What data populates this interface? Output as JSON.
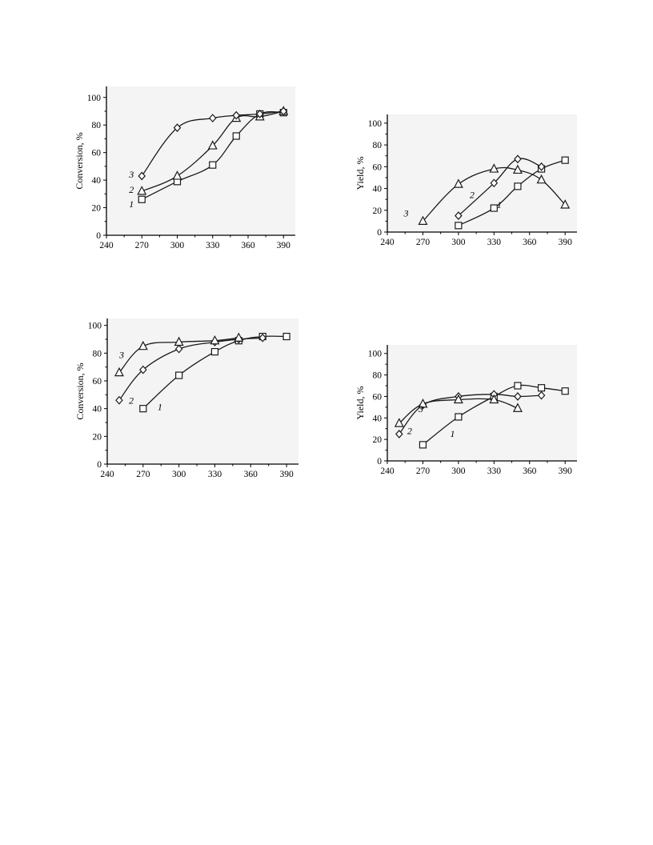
{
  "chart_data": [
    {
      "type": "line",
      "ylabel": "Conversion, %",
      "xlim": [
        240,
        400
      ],
      "ylim": [
        0,
        108
      ],
      "xticks": [
        240,
        270,
        300,
        330,
        360,
        390
      ],
      "yticks": [
        0,
        20,
        40,
        60,
        80,
        100
      ],
      "series": [
        {
          "name": "1",
          "marker": "square",
          "x": [
            270,
            300,
            330,
            350,
            370,
            390
          ],
          "y": [
            26,
            39,
            51,
            72,
            88,
            89
          ]
        },
        {
          "name": "2",
          "marker": "triangle",
          "x": [
            270,
            300,
            330,
            350,
            370,
            390
          ],
          "y": [
            32,
            43,
            65,
            85,
            86,
            90
          ]
        },
        {
          "name": "3",
          "marker": "diamond",
          "x": [
            270,
            300,
            330,
            350,
            370,
            390
          ],
          "y": [
            43,
            78,
            85,
            87,
            88,
            90
          ]
        }
      ]
    },
    {
      "type": "line",
      "ylabel": "Yield, %",
      "xlim": [
        240,
        400
      ],
      "ylim": [
        0,
        108
      ],
      "xticks": [
        240,
        270,
        300,
        330,
        360,
        390
      ],
      "yticks": [
        0,
        20,
        40,
        60,
        80,
        100
      ],
      "series": [
        {
          "name": "1",
          "marker": "square",
          "x": [
            300,
            330,
            350,
            370,
            390
          ],
          "y": [
            6,
            22,
            42,
            58,
            66
          ]
        },
        {
          "name": "2",
          "marker": "diamond",
          "x": [
            300,
            330,
            350,
            370
          ],
          "y": [
            15,
            45,
            67,
            60
          ]
        },
        {
          "name": "3",
          "marker": "triangle",
          "x": [
            270,
            300,
            330,
            350,
            370,
            390
          ],
          "y": [
            10,
            44,
            58,
            57,
            48,
            25
          ]
        }
      ]
    },
    {
      "type": "line",
      "ylabel": "Conversion, %",
      "xlim": [
        240,
        400
      ],
      "ylim": [
        0,
        105
      ],
      "xticks": [
        240,
        270,
        300,
        330,
        360,
        390
      ],
      "yticks": [
        0,
        20,
        40,
        60,
        80,
        100
      ],
      "series": [
        {
          "name": "1",
          "marker": "square",
          "x": [
            270,
            300,
            330,
            350,
            370,
            390
          ],
          "y": [
            40,
            64,
            81,
            89,
            92,
            92
          ]
        },
        {
          "name": "2",
          "marker": "diamond",
          "x": [
            250,
            270,
            300,
            330,
            350,
            370
          ],
          "y": [
            46,
            68,
            83,
            88,
            90,
            91
          ]
        },
        {
          "name": "3",
          "marker": "triangle",
          "x": [
            250,
            270,
            300,
            330,
            350
          ],
          "y": [
            66,
            85,
            88,
            89,
            91
          ]
        }
      ]
    },
    {
      "type": "line",
      "ylabel": "Yield, %",
      "xlim": [
        240,
        400
      ],
      "ylim": [
        0,
        108
      ],
      "xticks": [
        240,
        270,
        300,
        330,
        360,
        390
      ],
      "yticks": [
        0,
        20,
        40,
        60,
        80,
        100
      ],
      "series": [
        {
          "name": "1",
          "marker": "square",
          "x": [
            270,
            300,
            330,
            350,
            370,
            390
          ],
          "y": [
            15,
            41,
            60,
            70,
            68,
            65
          ]
        },
        {
          "name": "2",
          "marker": "diamond",
          "x": [
            250,
            270,
            300,
            330,
            350,
            370
          ],
          "y": [
            25,
            52,
            60,
            62,
            60,
            61
          ]
        },
        {
          "name": "3",
          "marker": "triangle",
          "x": [
            250,
            270,
            300,
            330,
            350
          ],
          "y": [
            35,
            53,
            57,
            57,
            49
          ]
        }
      ]
    }
  ]
}
